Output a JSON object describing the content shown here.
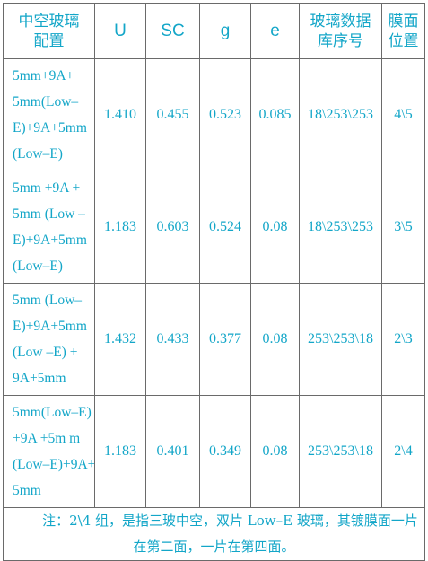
{
  "table": {
    "headers": [
      {
        "line1": "中空玻璃",
        "line2": "配置"
      },
      {
        "line1": "U",
        "line2": ""
      },
      {
        "line1": "SC",
        "line2": ""
      },
      {
        "line1": "g",
        "line2": ""
      },
      {
        "line1": "e",
        "line2": ""
      },
      {
        "line1": "玻璃数据",
        "line2": "库序号"
      },
      {
        "line1": "膜面",
        "line2": "位置"
      }
    ],
    "rows": [
      {
        "config": [
          "5mm+9A+",
          "5mm(Low–",
          "E)+9A+5mm",
          "(Low–E)"
        ],
        "u": "1.410",
        "sc": "0.455",
        "g": "0.523",
        "e": "0.085",
        "db": "18\\253\\253",
        "film": "4\\5"
      },
      {
        "config": [
          "5mm +9A +",
          "5mm (Low –",
          "E)+9A+5mm",
          "(Low–E)"
        ],
        "u": "1.183",
        "sc": "0.603",
        "g": "0.524",
        "e": "0.08",
        "db": "18\\253\\253",
        "film": "3\\5"
      },
      {
        "config": [
          "5mm (Low–",
          "E)+9A+5mm",
          "(Low –E) +",
          "9A+5mm"
        ],
        "u": "1.432",
        "sc": "0.433",
        "g": "0.377",
        "e": "0.08",
        "db": "253\\253\\18",
        "film": "2\\3"
      },
      {
        "config": [
          "5mm(Low–E)",
          "+9A +5m m",
          "(Low–E)+9A+",
          "5mm"
        ],
        "u": "1.183",
        "sc": "0.401",
        "g": "0.349",
        "e": "0.08",
        "db": "253\\253\\18",
        "film": "2\\4"
      }
    ],
    "note": "注：2\\4 组，是指三玻中空，双片 Low–E 玻璃，其镀膜面一片在第二面，一片在第四面。"
  },
  "colors": {
    "text": "#13a6c8",
    "border": "#6a6a6a",
    "background": "#ffffff"
  }
}
